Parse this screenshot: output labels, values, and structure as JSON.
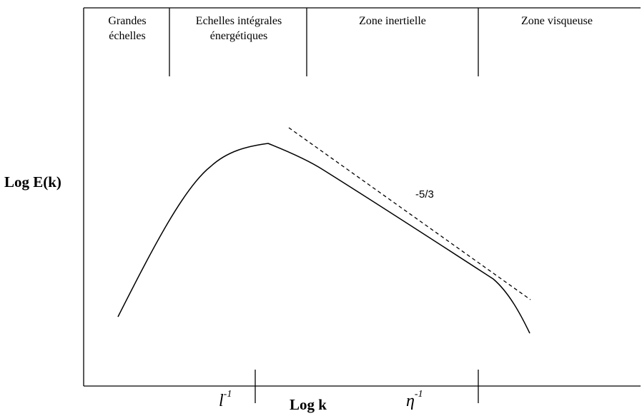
{
  "diagram": {
    "zones": [
      {
        "id": "grandes",
        "label": "Grandes échelles"
      },
      {
        "id": "integrales",
        "label": "Echelles intégrales énergétiques"
      },
      {
        "id": "inertielle",
        "label": "Zone inertielle"
      },
      {
        "id": "visqueuse",
        "label": "Zone visqueuse"
      }
    ],
    "y_axis_label": "Log E(k)",
    "x_axis_label": "Log k",
    "slope_label": "-5/3",
    "tick_marks": [
      {
        "symbol": "l",
        "exponent": "-1"
      },
      {
        "symbol": "η",
        "exponent": "-1"
      }
    ]
  }
}
